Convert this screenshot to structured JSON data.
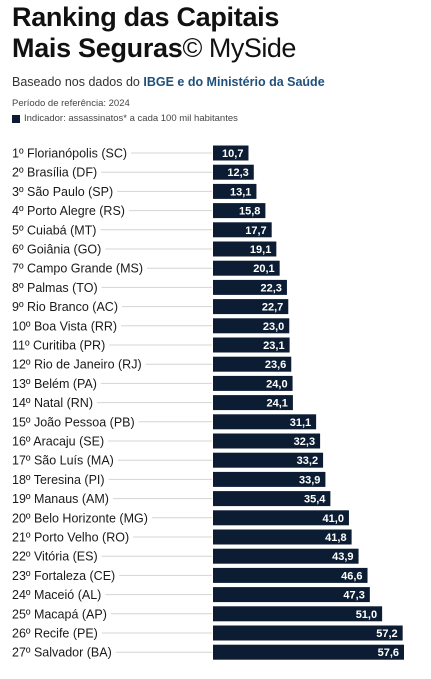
{
  "header": {
    "title_line1": "Ranking das Capitais",
    "title_line2": "Mais Seguras",
    "brand": "© MySide",
    "subtitle_prefix": "Baseado nos dados do ",
    "subtitle_highlight": "IBGE e do Ministério da Saúde",
    "period": "Período de referência: 2024",
    "legend_label": "Indicador: assassinatos* a cada 100 mil habitantes"
  },
  "colors": {
    "bar": "#0c1d33",
    "accent": "#1f4f7a",
    "label_text": "#1a1a1a",
    "value_text": "#ffffff"
  },
  "chart_data": {
    "type": "bar",
    "orientation": "horizontal",
    "title": "Ranking das Capitais Mais Seguras",
    "xlabel": "",
    "ylabel": "",
    "legend": [
      "Indicador: assassinatos* a cada 100 mil habitantes"
    ],
    "xlim": [
      0,
      57.6
    ],
    "grid": false,
    "categories": [
      "1º Florianópolis (SC)",
      "2º Brasília (DF)",
      "3º São Paulo (SP)",
      "4º Porto Alegre (RS)",
      "5º Cuiabá (MT)",
      "6º Goiânia (GO)",
      "7º Campo Grande (MS)",
      "8º Palmas (TO)",
      "9º Rio Branco (AC)",
      "10º Boa Vista (RR)",
      "11º Curitiba (PR)",
      "12º Rio de Janeiro (RJ)",
      "13º Belém (PA)",
      "14º Natal (RN)",
      "15º João Pessoa (PB)",
      "16º Aracaju (SE)",
      "17º São Luís (MA)",
      "18º Teresina (PI)",
      "19º Manaus (AM)",
      "20º Belo Horizonte (MG)",
      "21º Porto Velho (RO)",
      "22º Vitória (ES)",
      "23º Fortaleza (CE)",
      "24º Maceió (AL)",
      "25º Macapá (AP)",
      "26º Recife (PE)",
      "27º Salvador (BA)"
    ],
    "values": [
      10.7,
      12.3,
      13.1,
      15.8,
      17.7,
      19.1,
      20.1,
      22.3,
      22.7,
      23.0,
      23.1,
      23.6,
      24.0,
      24.1,
      31.1,
      32.3,
      33.2,
      33.9,
      35.4,
      41.0,
      41.8,
      43.9,
      46.6,
      47.3,
      51.0,
      57.2,
      57.6
    ],
    "value_labels": [
      "10,7",
      "12,3",
      "13,1",
      "15,8",
      "17,7",
      "19,1",
      "20,1",
      "22,3",
      "22,7",
      "23,0",
      "23,1",
      "23,6",
      "24,0",
      "24,1",
      "31,1",
      "32,3",
      "33,2",
      "33,9",
      "35,4",
      "41,0",
      "41,8",
      "43,9",
      "46,6",
      "47,3",
      "51,0",
      "57,2",
      "57,6"
    ]
  }
}
